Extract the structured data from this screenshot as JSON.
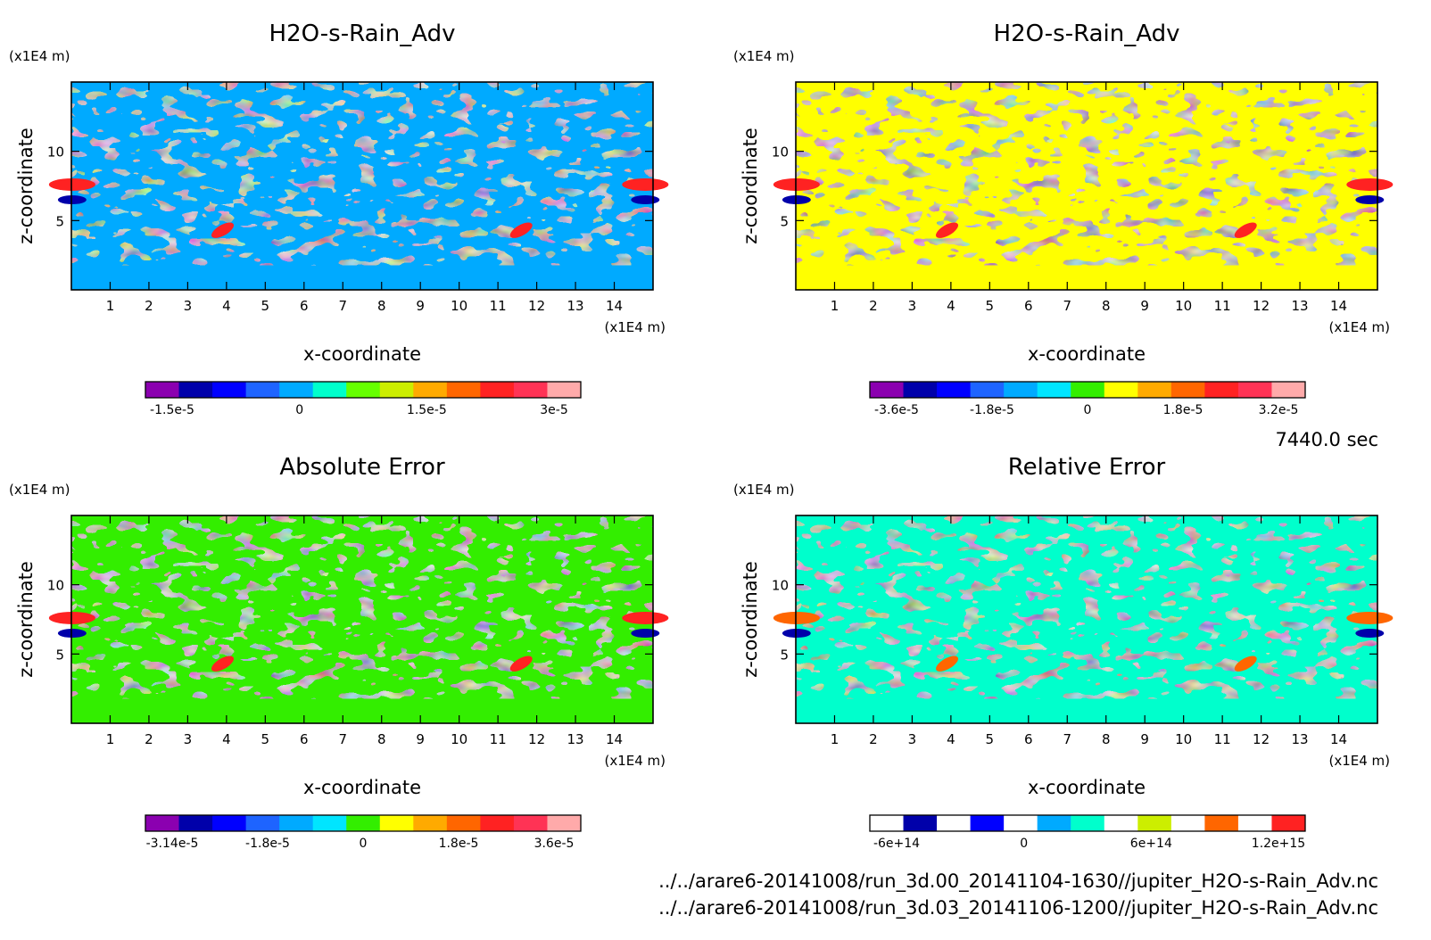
{
  "time_label": "7440.0 sec",
  "footer_lines": [
    "../../arare6-20141008/run_3d.00_20141104-1630//jupiter_H2O-s-Rain_Adv.nc",
    "../../arare6-20141008/run_3d.03_20141106-1200//jupiter_H2O-s-Rain_Adv.nc"
  ],
  "chart_data": [
    {
      "type": "heatmap",
      "title": "H2O-s-Rain_Adv",
      "xlabel": "x-coordinate",
      "ylabel": "z-coordinate",
      "x_unit": "(x1E4 m)",
      "y_unit": "(x1E4 m)",
      "xlim": [
        0,
        15
      ],
      "ylim": [
        0,
        15
      ],
      "x_ticks": [
        1,
        2,
        3,
        4,
        5,
        6,
        7,
        8,
        9,
        10,
        11,
        12,
        13,
        14
      ],
      "y_ticks": [
        5,
        10
      ],
      "background_level_color": "#00aaff",
      "colorbar": {
        "colors": [
          "#8b00b0",
          "#0000aa",
          "#0000ff",
          "#1e64ff",
          "#00aaff",
          "#00ffcc",
          "#66ff00",
          "#ccee00",
          "#ffaa00",
          "#ff6600",
          "#ff2222",
          "#ff3355",
          "#ffaaaa"
        ],
        "tick_labels": [
          "-1.5e-5",
          "0",
          "1.5e-5",
          "3e-5"
        ]
      }
    },
    {
      "type": "heatmap",
      "title": "H2O-s-Rain_Adv",
      "xlabel": "x-coordinate",
      "ylabel": "z-coordinate",
      "x_unit": "(x1E4 m)",
      "y_unit": "(x1E4 m)",
      "xlim": [
        0,
        15
      ],
      "ylim": [
        0,
        15
      ],
      "x_ticks": [
        1,
        2,
        3,
        4,
        5,
        6,
        7,
        8,
        9,
        10,
        11,
        12,
        13,
        14
      ],
      "y_ticks": [
        5,
        10
      ],
      "background_level_color": "#ffff00",
      "colorbar": {
        "colors": [
          "#8b00b0",
          "#0000aa",
          "#0000ff",
          "#1e64ff",
          "#00aaff",
          "#00e5ff",
          "#33ee00",
          "#ffff00",
          "#ffaa00",
          "#ff6600",
          "#ff2222",
          "#ff3355",
          "#ffaaaa"
        ],
        "tick_labels": [
          "-3.6e-5",
          "-1.8e-5",
          "0",
          "1.8e-5",
          "3.2e-5"
        ]
      }
    },
    {
      "type": "heatmap",
      "title": "Absolute Error",
      "xlabel": "x-coordinate",
      "ylabel": "z-coordinate",
      "x_unit": "(x1E4 m)",
      "y_unit": "(x1E4 m)",
      "xlim": [
        0,
        15
      ],
      "ylim": [
        0,
        15
      ],
      "x_ticks": [
        1,
        2,
        3,
        4,
        5,
        6,
        7,
        8,
        9,
        10,
        11,
        12,
        13,
        14
      ],
      "y_ticks": [
        5,
        10
      ],
      "background_level_color": "#33ee00",
      "colorbar": {
        "colors": [
          "#8b00b0",
          "#0000aa",
          "#0000ff",
          "#1e64ff",
          "#00aaff",
          "#00e5ff",
          "#33ee00",
          "#ffff00",
          "#ffaa00",
          "#ff6600",
          "#ff2222",
          "#ff3355",
          "#ffaaaa"
        ],
        "tick_labels": [
          "-3.14e-5",
          "-1.8e-5",
          "0",
          "1.8e-5",
          "3.6e-5"
        ]
      }
    },
    {
      "type": "heatmap",
      "title": "Relative Error",
      "xlabel": "x-coordinate",
      "ylabel": "z-coordinate",
      "x_unit": "(x1E4 m)",
      "y_unit": "(x1E4 m)",
      "xlim": [
        0,
        15
      ],
      "ylim": [
        0,
        15
      ],
      "x_ticks": [
        1,
        2,
        3,
        4,
        5,
        6,
        7,
        8,
        9,
        10,
        11,
        12,
        13,
        14
      ],
      "y_ticks": [
        5,
        10
      ],
      "background_level_color": "#00ffcc",
      "colorbar": {
        "colors": [
          "#ffffff",
          "#0000aa",
          "#ffffff",
          "#0000ff",
          "#ffffff",
          "#00aaff",
          "#00ffcc",
          "#ffffff",
          "#ccee00",
          "#ffffff",
          "#ff6600",
          "#ffffff",
          "#ff2222"
        ],
        "tick_labels": [
          "-6e+14",
          "0",
          "6e+14",
          "1.2e+15"
        ]
      }
    }
  ]
}
